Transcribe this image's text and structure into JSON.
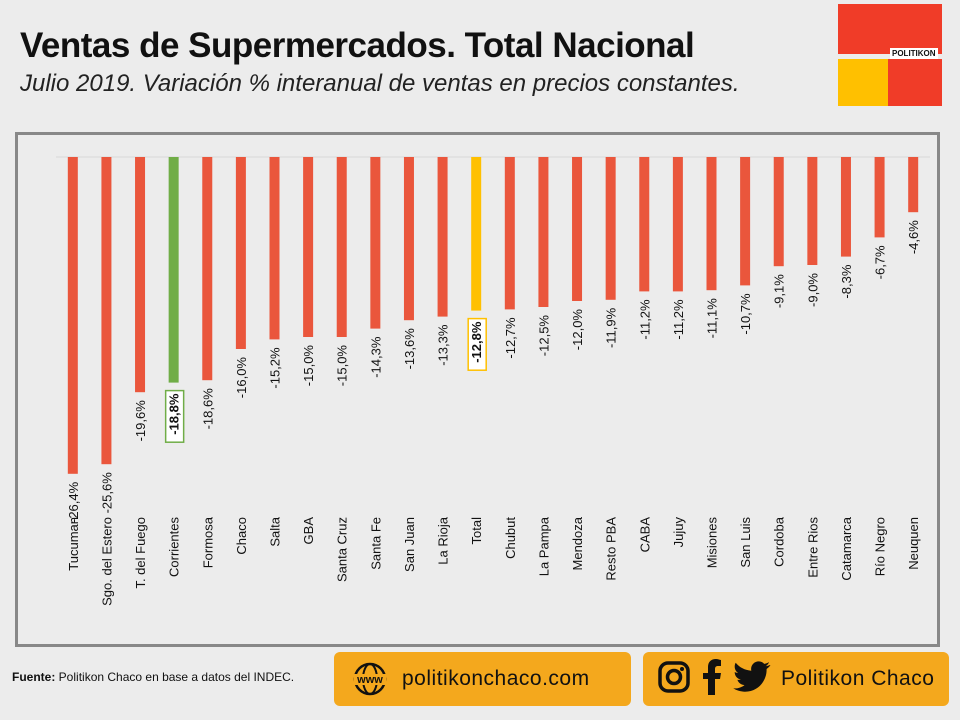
{
  "header": {
    "title": "Ventas de Supermercados. Total Nacional",
    "subtitle": "Julio 2019. Variación % interanual de ventas en precios constantes.",
    "logo_text": "POLITIKON"
  },
  "colors": {
    "bar_default": "#ea563c",
    "bar_highlight_green": "#70ad47",
    "bar_highlight_total": "#ffc000",
    "logo_red": "#f03c28",
    "logo_yellow": "#ffc000",
    "pill_bg": "#f4a81d"
  },
  "chart_data": {
    "type": "bar",
    "title": "",
    "xlabel": "",
    "ylabel": "",
    "ylim": [
      -27,
      0
    ],
    "categories": [
      "Tucuman",
      "Sgo. del Estero",
      "T. del Fuego",
      "Corrientes",
      "Formosa",
      "Chaco",
      "Salta",
      "GBA",
      "Santa Cruz",
      "Santa Fe",
      "San Juan",
      "La Rioja",
      "Total",
      "Chubut",
      "La Pampa",
      "Mendoza",
      "Resto PBA",
      "CABA",
      "Jujuy",
      "Misiones",
      "San Luis",
      "Cordoba",
      "Entre Rios",
      "Catamarca",
      "Río Negro",
      "Neuquen"
    ],
    "values": [
      -26.4,
      -25.6,
      -19.6,
      -18.8,
      -18.6,
      -16.0,
      -15.2,
      -15.0,
      -15.0,
      -14.3,
      -13.6,
      -13.3,
      -12.8,
      -12.7,
      -12.5,
      -12.0,
      -11.9,
      -11.2,
      -11.2,
      -11.1,
      -10.7,
      -9.1,
      -9.0,
      -8.3,
      -6.7,
      -4.6
    ],
    "value_labels": [
      "-26,4%",
      "-25,6%",
      "-19,6%",
      "-18,8%",
      "-18,6%",
      "-16,0%",
      "-15,2%",
      "-15,0%",
      "-15,0%",
      "-14,3%",
      "-13,6%",
      "-13,3%",
      "-12,8%",
      "-12,7%",
      "-12,5%",
      "-12,0%",
      "-11,9%",
      "-11,2%",
      "-11,2%",
      "-11,1%",
      "-10,7%",
      "-9,1%",
      "-9,0%",
      "-8,3%",
      "-6,7%",
      "-4,6%"
    ],
    "highlights": {
      "Corrientes": "green",
      "Total": "total"
    },
    "grid": false,
    "legend": "none"
  },
  "footer": {
    "source_bold": "Fuente:",
    "source_text": " Politikon Chaco en base a datos del INDEC.",
    "website": "politikonchaco.com",
    "www_icon_text": "www",
    "social_handle": "Politikon Chaco",
    "icons": [
      "globe-icon",
      "instagram-icon",
      "facebook-icon",
      "twitter-icon"
    ]
  }
}
